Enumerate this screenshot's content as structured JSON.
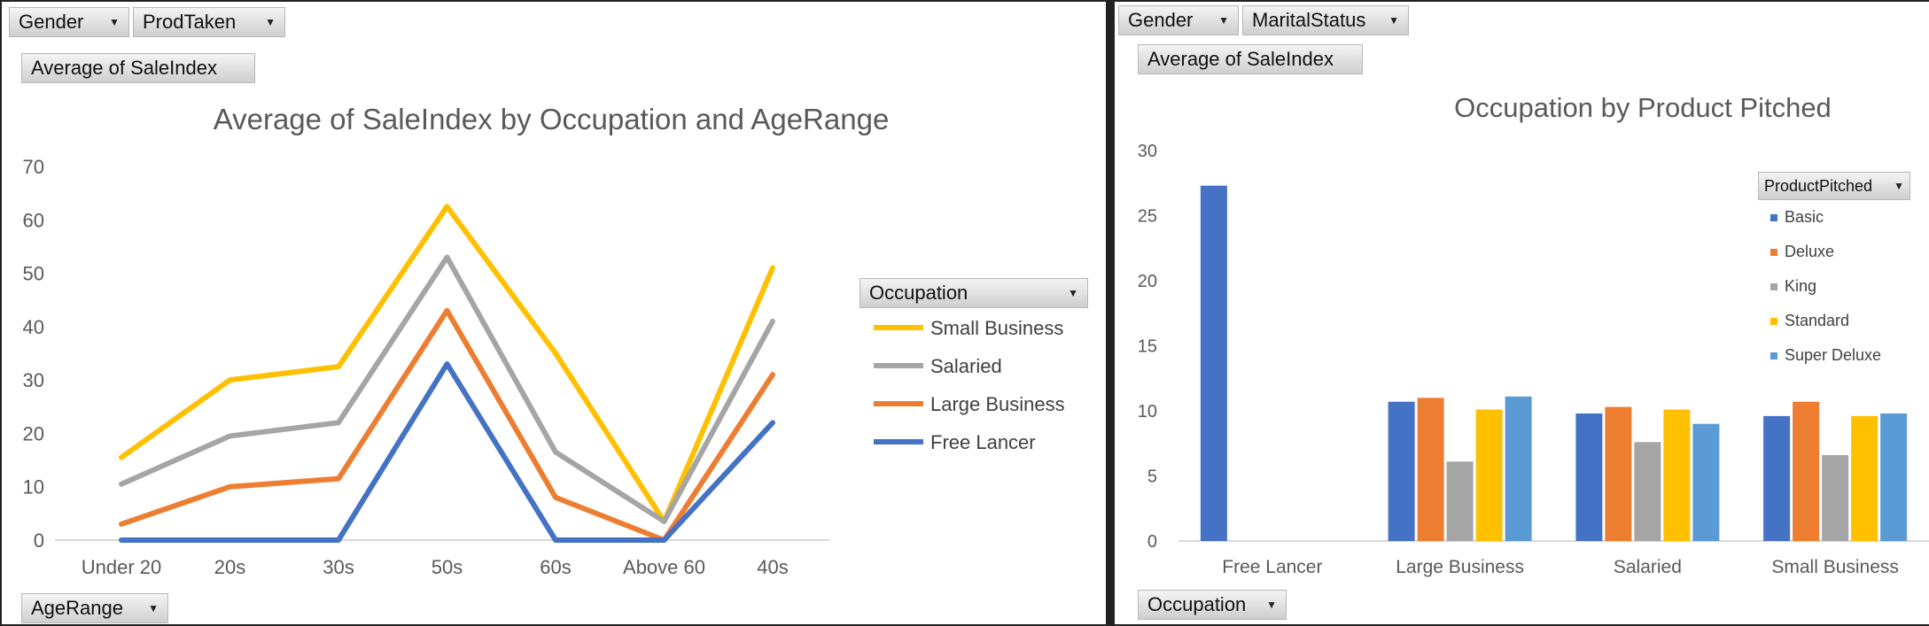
{
  "left": {
    "filters": [
      {
        "label": "Gender"
      },
      {
        "label": "ProdTaken"
      }
    ],
    "values_button": "Average of SaleIndex",
    "axis_button": "AgeRange",
    "legend_button": "Occupation"
  },
  "right": {
    "filters": [
      {
        "label": "Gender"
      },
      {
        "label": "MaritalStatus"
      }
    ],
    "values_button": "Average of SaleIndex",
    "axis_button": "Occupation",
    "legend_button": "ProductPitched"
  },
  "chart_data": [
    {
      "type": "line",
      "title": "Average of SaleIndex by Occupation and AgeRange",
      "xlabel": "",
      "ylabel": "",
      "categories": [
        "Under 20",
        "20s",
        "30s",
        "50s",
        "60s",
        "Above 60",
        "40s"
      ],
      "ylim": [
        0,
        70
      ],
      "yticks": [
        "0",
        "10",
        "20",
        "30",
        "40",
        "50",
        "60",
        "70"
      ],
      "grid": false,
      "legend_position": "right",
      "series": [
        {
          "name": "Small Business",
          "color": "#FFC000",
          "values": [
            15.5,
            30,
            32.5,
            62.5,
            35,
            3.5,
            51
          ]
        },
        {
          "name": "Salaried",
          "color": "#A5A5A5",
          "values": [
            10.5,
            19.5,
            22,
            53,
            16.5,
            3.5,
            41
          ]
        },
        {
          "name": "Large Business",
          "color": "#ED7D31",
          "values": [
            3,
            10,
            11.5,
            43,
            8,
            0,
            31
          ]
        },
        {
          "name": "Free Lancer",
          "color": "#4472C4",
          "values": [
            0,
            0,
            0,
            33,
            0,
            0,
            22
          ]
        }
      ]
    },
    {
      "type": "bar",
      "title": "Occupation by Product Pitched",
      "xlabel": "",
      "ylabel": "",
      "categories": [
        "Free Lancer",
        "Large Business",
        "Salaried",
        "Small Business"
      ],
      "ylim": [
        0,
        30
      ],
      "yticks": [
        "0",
        "5",
        "10",
        "15",
        "20",
        "25",
        "30"
      ],
      "grid": false,
      "legend_position": "top-right",
      "series": [
        {
          "name": "Basic",
          "color": "#4472C4",
          "values": [
            27.3,
            10.7,
            9.8,
            9.6
          ]
        },
        {
          "name": "Deluxe",
          "color": "#ED7D31",
          "values": [
            null,
            11.0,
            10.3,
            10.7
          ]
        },
        {
          "name": "King",
          "color": "#A5A5A5",
          "values": [
            null,
            6.1,
            7.6,
            6.6
          ]
        },
        {
          "name": "Standard",
          "color": "#FFC000",
          "values": [
            null,
            10.1,
            10.1,
            9.6
          ]
        },
        {
          "name": "Super Deluxe",
          "color": "#5B9BD5",
          "values": [
            null,
            11.1,
            9.0,
            9.8
          ]
        }
      ]
    }
  ]
}
